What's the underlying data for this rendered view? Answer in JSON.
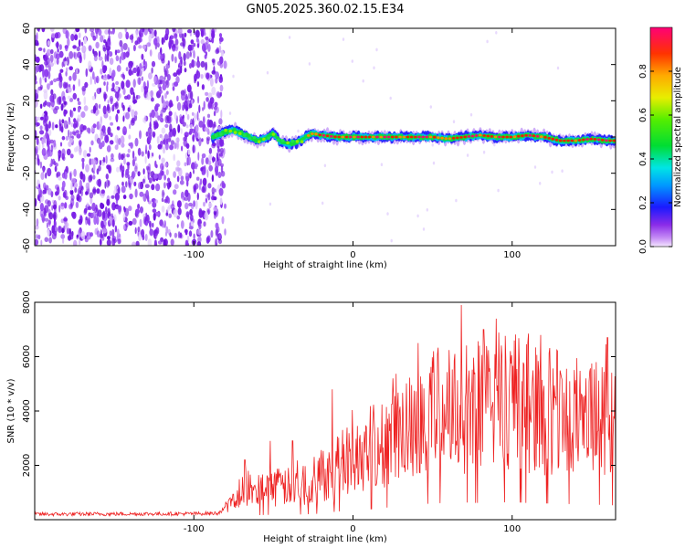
{
  "title": "GN05.2025.360.02.15.E34",
  "chart_data": [
    {
      "type": "heatmap",
      "name": "spectrogram",
      "xlabel": "Height of straight line (km)",
      "ylabel": "Frequency (Hz)",
      "xlim": [
        -200,
        165
      ],
      "ylim": [
        -60,
        60
      ],
      "xticks": [
        -100,
        0,
        100
      ],
      "yticks": [
        -60,
        -40,
        -20,
        0,
        20,
        40,
        60
      ],
      "noise_region_x": [
        -200,
        -82
      ],
      "ridge": {
        "x": [
          -88,
          -80,
          -75,
          -70,
          -65,
          -60,
          -55,
          -50,
          -45,
          -40,
          -35,
          -30,
          -25,
          -20,
          -10,
          0,
          10,
          20,
          30,
          40,
          50,
          60,
          70,
          80,
          90,
          100,
          110,
          120,
          130,
          140,
          150,
          160,
          165
        ],
        "freq": [
          0,
          3,
          4,
          2,
          0,
          -2,
          -1,
          2,
          -3,
          -4,
          -3,
          0,
          2,
          1,
          0,
          0,
          0,
          0,
          0,
          0,
          0,
          -1,
          0,
          1,
          0,
          0,
          1,
          0,
          -2,
          -2,
          -1,
          -2,
          -2
        ]
      },
      "colorbar": {
        "label": "Normalized spectral amplitude",
        "ticks": [
          0.0,
          0.2,
          0.4,
          0.6,
          0.8
        ],
        "tick_labels": [
          "0.0",
          "0.2",
          "0.4",
          "0.6",
          "0.8"
        ],
        "range": [
          0,
          1
        ]
      }
    },
    {
      "type": "line",
      "name": "snr",
      "xlabel": "Height of straight line (km)",
      "ylabel": "SNR (10 * v/v)",
      "xlim": [
        -200,
        165
      ],
      "ylim": [
        0,
        8000
      ],
      "xticks": [
        -100,
        0,
        100
      ],
      "yticks": [
        2000,
        4000,
        6000,
        8000
      ],
      "color": "#ee2222",
      "envelope": {
        "x": [
          -200,
          -150,
          -100,
          -85,
          -78,
          -70,
          -60,
          -50,
          -40,
          -30,
          -20,
          -10,
          0,
          10,
          20,
          30,
          40,
          50,
          60,
          70,
          80,
          90,
          100,
          110,
          120,
          130,
          140,
          150,
          160,
          165
        ],
        "y": [
          200,
          210,
          220,
          240,
          500,
          1000,
          1100,
          1200,
          1200,
          1300,
          1500,
          2000,
          2300,
          2600,
          2900,
          3300,
          3700,
          4000,
          4100,
          4200,
          4100,
          4200,
          4300,
          4100,
          4000,
          3900,
          3800,
          3700,
          3600,
          3500
        ]
      },
      "spikes": [
        {
          "x": -68,
          "y": 2200
        },
        {
          "x": -52,
          "y": 2900
        },
        {
          "x": -38,
          "y": 2900
        },
        {
          "x": -13,
          "y": 4800
        },
        {
          "x": 25,
          "y": 5200
        },
        {
          "x": 41,
          "y": 6500
        },
        {
          "x": 68,
          "y": 7900
        },
        {
          "x": 82,
          "y": 7000
        },
        {
          "x": 90,
          "y": 7400
        },
        {
          "x": 118,
          "y": 6800
        },
        {
          "x": 160,
          "y": 6700
        }
      ]
    }
  ]
}
